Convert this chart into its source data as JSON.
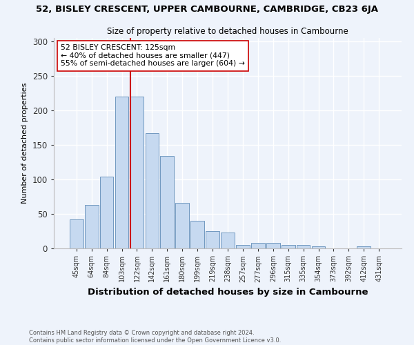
{
  "title1": "52, BISLEY CRESCENT, UPPER CAMBOURNE, CAMBRIDGE, CB23 6JA",
  "title2": "Size of property relative to detached houses in Cambourne",
  "xlabel": "Distribution of detached houses by size in Cambourne",
  "ylabel": "Number of detached properties",
  "categories": [
    "45sqm",
    "64sqm",
    "84sqm",
    "103sqm",
    "122sqm",
    "142sqm",
    "161sqm",
    "180sqm",
    "199sqm",
    "219sqm",
    "238sqm",
    "257sqm",
    "277sqm",
    "296sqm",
    "315sqm",
    "335sqm",
    "354sqm",
    "373sqm",
    "392sqm",
    "412sqm",
    "431sqm"
  ],
  "values": [
    42,
    63,
    104,
    220,
    220,
    167,
    134,
    66,
    40,
    25,
    23,
    5,
    8,
    8,
    5,
    5,
    3,
    0,
    0,
    3,
    0
  ],
  "bar_color": "#c6d9f0",
  "bar_edge_color": "#7098c0",
  "vline_x_index": 4,
  "vline_color": "#cc0000",
  "annotation_text": "52 BISLEY CRESCENT: 125sqm\n← 40% of detached houses are smaller (447)\n55% of semi-detached houses are larger (604) →",
  "annotation_box_color": "#ffffff",
  "annotation_box_edge": "#cc0000",
  "ylim": [
    0,
    305
  ],
  "yticks": [
    0,
    50,
    100,
    150,
    200,
    250,
    300
  ],
  "background_color": "#eef3fb",
  "grid_color": "#ffffff",
  "footer": "Contains HM Land Registry data © Crown copyright and database right 2024.\nContains public sector information licensed under the Open Government Licence v3.0."
}
